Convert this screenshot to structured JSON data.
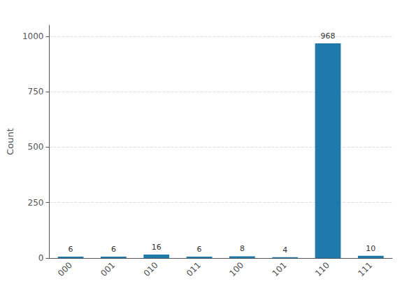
{
  "chart_data": {
    "type": "bar",
    "ylabel": "Count",
    "categories": [
      "000",
      "001",
      "010",
      "011",
      "100",
      "101",
      "110",
      "111"
    ],
    "values": [
      6,
      6,
      16,
      6,
      8,
      4,
      968,
      10
    ],
    "color": "#1f7aab",
    "ylim": [
      0,
      1050
    ],
    "yticks": [
      0,
      250,
      500,
      750,
      1000
    ],
    "grid": true,
    "data_labels": true
  }
}
